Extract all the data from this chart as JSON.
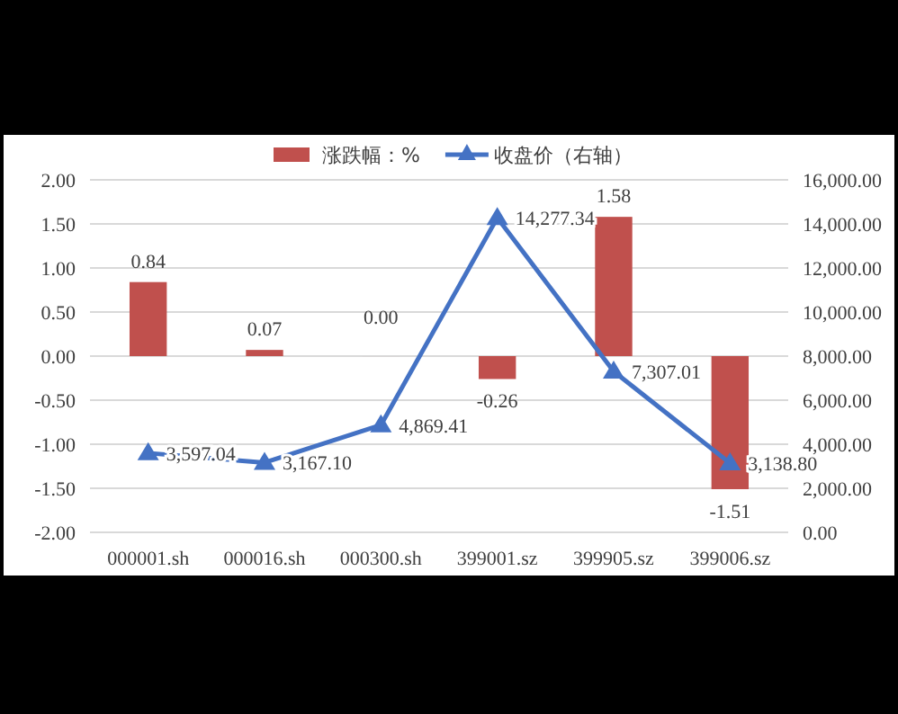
{
  "chart_data": {
    "type": "bar",
    "categories": [
      "000001.sh",
      "000016.sh",
      "000300.sh",
      "399001.sz",
      "399905.sz",
      "399006.sz"
    ],
    "series": [
      {
        "name": "涨跌幅：%",
        "color": "#c0504d",
        "values": [
          0.84,
          0.07,
          0.0,
          -0.26,
          1.58,
          -1.51
        ],
        "value_labels": [
          "0.84",
          "0.07",
          "0.00",
          "-0.26",
          "1.58",
          "-1.51"
        ]
      },
      {
        "name": "收盘价（右轴）",
        "type": "line",
        "axis": "y2",
        "color": "#4472c4",
        "marker": "triangle",
        "values": [
          3597.04,
          3167.1,
          4869.41,
          14277.34,
          7307.01,
          3138.8
        ],
        "value_labels": [
          "3,597.04",
          "3,167.10",
          "4,869.41",
          "14,277.34",
          "7,307.01",
          "3,138.80"
        ]
      }
    ],
    "ylim": [
      -2,
      2
    ],
    "yticks": [
      {
        "value": -2,
        "label": "-2.00"
      },
      {
        "value": -1.5,
        "label": "-1.50"
      },
      {
        "value": -1,
        "label": "-1.00"
      },
      {
        "value": -0.5,
        "label": "-0.50"
      },
      {
        "value": 0,
        "label": "0.00"
      },
      {
        "value": 0.5,
        "label": "0.50"
      },
      {
        "value": 1,
        "label": "1.00"
      },
      {
        "value": 1.5,
        "label": "1.50"
      },
      {
        "value": 2,
        "label": "2.00"
      }
    ],
    "y2lim": [
      0,
      16000
    ],
    "y2ticks": [
      {
        "value": 0,
        "label": "0.00"
      },
      {
        "value": 2000,
        "label": "2,000.00"
      },
      {
        "value": 4000,
        "label": "4,000.00"
      },
      {
        "value": 6000,
        "label": "6,000.00"
      },
      {
        "value": 8000,
        "label": "8,000.00"
      },
      {
        "value": 10000,
        "label": "10,000.00"
      },
      {
        "value": 12000,
        "label": "12,000.00"
      },
      {
        "value": 14000,
        "label": "14,000.00"
      },
      {
        "value": 16000,
        "label": "16,000.00"
      }
    ],
    "grid": "y",
    "legend": "top"
  }
}
